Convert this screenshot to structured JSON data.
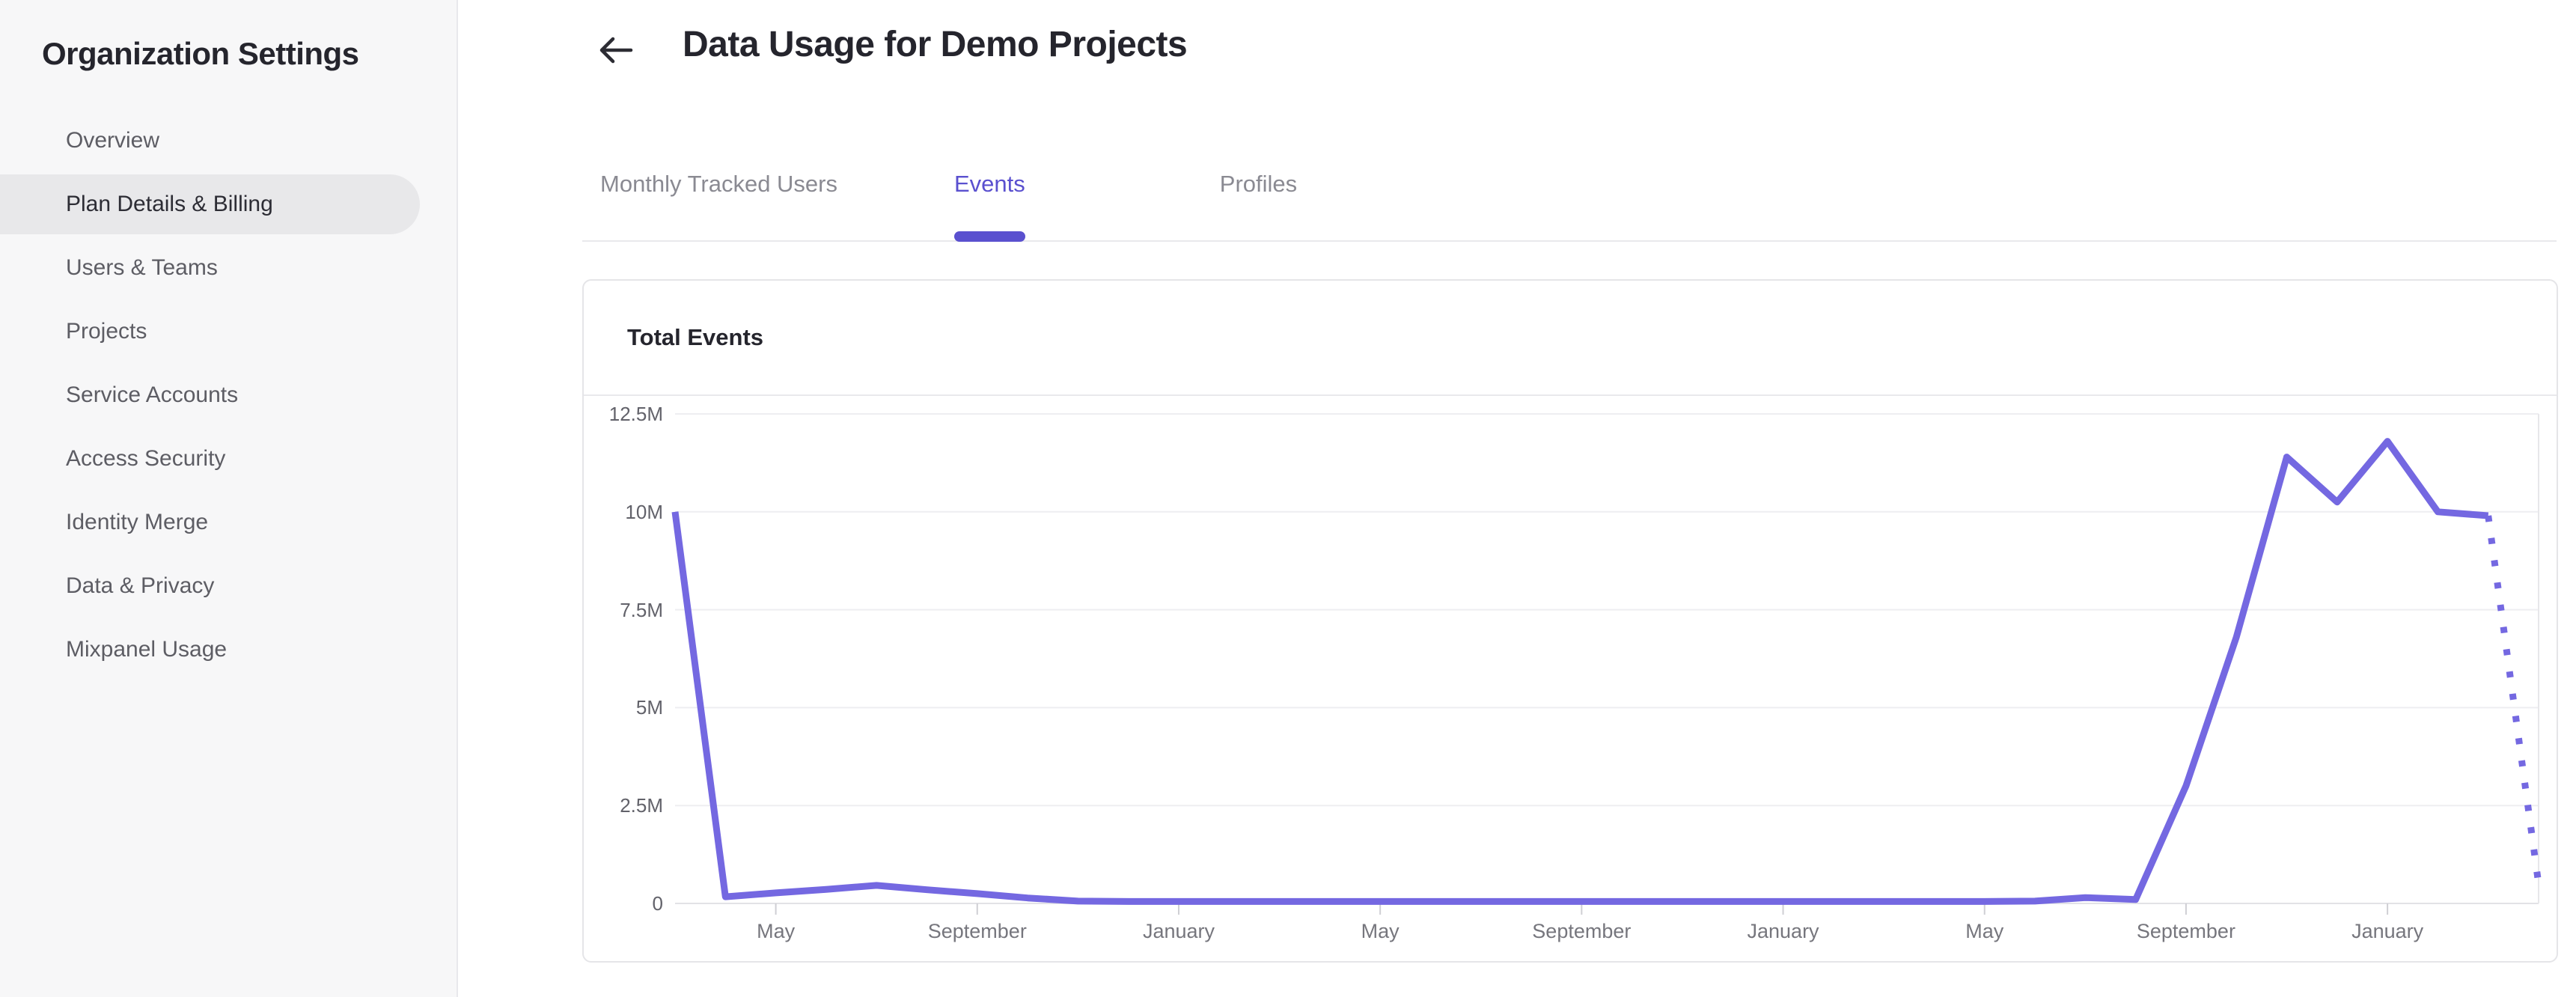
{
  "sidebar": {
    "title": "Organization Settings",
    "items": [
      {
        "label": "Overview",
        "active": false
      },
      {
        "label": "Plan Details & Billing",
        "active": true
      },
      {
        "label": "Users & Teams",
        "active": false
      },
      {
        "label": "Projects",
        "active": false
      },
      {
        "label": "Service Accounts",
        "active": false
      },
      {
        "label": "Access Security",
        "active": false
      },
      {
        "label": "Identity Merge",
        "active": false
      },
      {
        "label": "Data & Privacy",
        "active": false
      },
      {
        "label": "Mixpanel Usage",
        "active": false
      }
    ]
  },
  "header": {
    "title": "Data Usage for Demo Projects"
  },
  "tabs": [
    {
      "label": "Monthly Tracked Users",
      "active": false
    },
    {
      "label": "Events",
      "active": true
    },
    {
      "label": "Profiles",
      "active": false
    }
  ],
  "card": {
    "title": "Total Events"
  },
  "colors": {
    "accent_purple": "#5a50cf",
    "chart_line_purple": "#7468e1",
    "selected_item_bg": "#e8e8ea",
    "grid_line": "#eeeef1"
  },
  "chart_data": {
    "type": "line",
    "title": "Total Events",
    "xlabel": "",
    "ylabel": "",
    "ylim": [
      0,
      12500000
    ],
    "grid": true,
    "legend": "none",
    "yticks": [
      {
        "label": "0",
        "value": 0
      },
      {
        "label": "2.5M",
        "value": 2500000
      },
      {
        "label": "5M",
        "value": 5000000
      },
      {
        "label": "7.5M",
        "value": 7500000
      },
      {
        "label": "10M",
        "value": 10000000
      },
      {
        "label": "12.5M",
        "value": 12500000
      }
    ],
    "x_unit": "month",
    "xtick_labels": [
      "May",
      "September",
      "January",
      "May",
      "September",
      "January",
      "May",
      "September",
      "January"
    ],
    "xtick_indices": [
      2,
      6,
      10,
      14,
      18,
      22,
      26,
      30,
      34
    ],
    "series": [
      {
        "name": "Total Events",
        "style": "solid",
        "values": [
          10000000,
          170000,
          270000,
          360000,
          460000,
          350000,
          250000,
          140000,
          60000,
          50000,
          50000,
          50000,
          50000,
          50000,
          50000,
          50000,
          50000,
          50000,
          50000,
          50000,
          50000,
          50000,
          50000,
          50000,
          50000,
          50000,
          50000,
          60000,
          150000,
          100000,
          3000000,
          6800000,
          11400000,
          10250000,
          11800000,
          10000000,
          9900000
        ]
      }
    ],
    "projected_point": {
      "x_index": 37,
      "value": 500000,
      "style": "dotted"
    }
  }
}
